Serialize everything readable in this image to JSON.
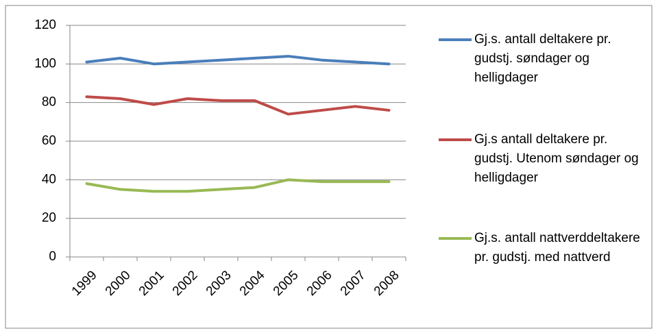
{
  "chart_data": {
    "type": "line",
    "categories": [
      "1999",
      "2000",
      "2001",
      "2002",
      "2003",
      "2004",
      "2005",
      "2006",
      "2007",
      "2008"
    ],
    "series": [
      {
        "name": "Gj.s. antall deltakere pr. gudstj. søndager og helligdager",
        "color": "#4a7ebb",
        "values": [
          101,
          103,
          100,
          101,
          102,
          103,
          104,
          102,
          101,
          100
        ]
      },
      {
        "name": "Gj.s antall deltakere pr. gudstj. Utenom søndager og helligdager",
        "color": "#be4b48",
        "values": [
          83,
          82,
          79,
          82,
          81,
          81,
          74,
          76,
          78,
          76
        ]
      },
      {
        "name": "Gj.s. antall nattverddeltakere pr. gudstj. med nattverd",
        "color": "#98b954",
        "values": [
          38,
          35,
          34,
          34,
          35,
          36,
          40,
          39,
          39,
          39
        ]
      }
    ],
    "ylim": [
      0,
      120
    ],
    "yticks": [
      0,
      20,
      40,
      60,
      80,
      100,
      120
    ],
    "grid": true,
    "legend": "right"
  }
}
